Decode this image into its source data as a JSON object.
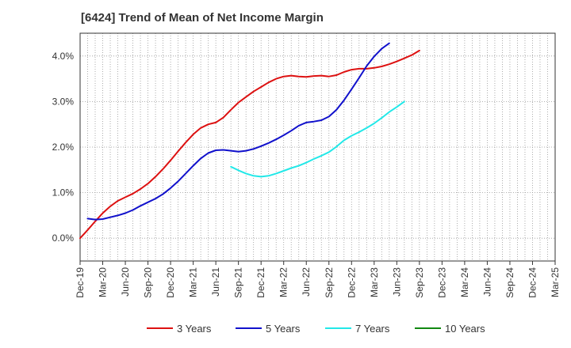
{
  "chart_data": {
    "type": "line",
    "title": "[6424]  Trend of Mean of Net Income Margin",
    "xlabel": "",
    "ylabel": "",
    "x_ticks": [
      "Dec-19",
      "Mar-20",
      "Jun-20",
      "Sep-20",
      "Dec-20",
      "Mar-21",
      "Jun-21",
      "Sep-21",
      "Dec-21",
      "Mar-22",
      "Jun-22",
      "Sep-22",
      "Dec-22",
      "Mar-23",
      "Jun-23",
      "Sep-23",
      "Dec-23",
      "Mar-24",
      "Jun-24",
      "Sep-24",
      "Dec-24",
      "Mar-25"
    ],
    "y_ticks": [
      "0.0%",
      "1.0%",
      "2.0%",
      "3.0%",
      "4.0%"
    ],
    "ylim": [
      -0.5,
      4.5
    ],
    "grid": true,
    "legend_position": "bottom",
    "series": [
      {
        "name": "3 Years",
        "color": "#dd1111",
        "start_index": 0,
        "values": [
          0.0,
          0.18,
          0.37,
          0.55,
          0.7,
          0.82,
          0.9,
          0.98,
          1.08,
          1.2,
          1.35,
          1.52,
          1.71,
          1.91,
          2.1,
          2.28,
          2.42,
          2.5,
          2.54,
          2.65,
          2.82,
          2.98,
          3.1,
          3.22,
          3.32,
          3.42,
          3.5,
          3.55,
          3.57,
          3.55,
          3.54,
          3.56,
          3.57,
          3.55,
          3.58,
          3.65,
          3.7,
          3.72,
          3.72,
          3.74,
          3.77,
          3.82,
          3.88,
          3.95,
          4.02,
          4.12
        ]
      },
      {
        "name": "5 Years",
        "color": "#1111cc",
        "start_index": 1,
        "values": [
          0.43,
          0.41,
          0.42,
          0.46,
          0.5,
          0.55,
          0.62,
          0.71,
          0.79,
          0.87,
          0.97,
          1.1,
          1.25,
          1.42,
          1.59,
          1.75,
          1.87,
          1.93,
          1.94,
          1.92,
          1.9,
          1.92,
          1.96,
          2.02,
          2.09,
          2.17,
          2.26,
          2.36,
          2.47,
          2.54,
          2.56,
          2.59,
          2.67,
          2.82,
          3.03,
          3.27,
          3.52,
          3.78,
          3.99,
          4.16,
          4.28
        ]
      },
      {
        "name": "7 Years",
        "color": "#22e8e8",
        "start_index": 20,
        "values": [
          1.57,
          1.49,
          1.42,
          1.37,
          1.35,
          1.37,
          1.42,
          1.48,
          1.54,
          1.59,
          1.66,
          1.74,
          1.81,
          1.89,
          2.01,
          2.15,
          2.25,
          2.33,
          2.42,
          2.52,
          2.64,
          2.77,
          2.88,
          3.0
        ]
      },
      {
        "name": "10 Years",
        "color": "#118811",
        "start_index": 0,
        "values": []
      }
    ]
  }
}
